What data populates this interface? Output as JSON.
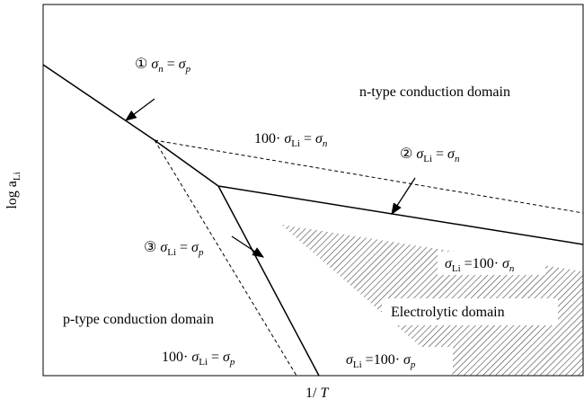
{
  "labels": {
    "eq1": {
      "runs": [
        {
          "t": "①"
        },
        {
          "t": "σ",
          "s": "n",
          "i": true
        },
        {
          "t": "="
        },
        {
          "t": "σ",
          "s": "p",
          "i": true
        }
      ]
    },
    "n_domain": {
      "runs": [
        {
          "t": "n-type conduction domain"
        }
      ]
    },
    "eq_n100": {
      "runs": [
        {
          "t": "100·"
        },
        {
          "t": "σ",
          "s": "Li",
          "i": true
        },
        {
          "t": "="
        },
        {
          "t": "σ",
          "s": "n",
          "i": true
        }
      ]
    },
    "eq2": {
      "runs": [
        {
          "t": "②"
        },
        {
          "t": "σ",
          "s": "Li",
          "i": true
        },
        {
          "t": "="
        },
        {
          "t": "σ",
          "s": "n",
          "i": true
        }
      ]
    },
    "eq_li_n": {
      "runs": [
        {
          "t": "σ",
          "s": "Li",
          "i": true
        },
        {
          "t": "=100·"
        },
        {
          "t": "σ",
          "s": "n",
          "i": true
        }
      ]
    },
    "electrolytic": {
      "runs": [
        {
          "t": "Electrolytic domain"
        }
      ]
    },
    "eq3": {
      "runs": [
        {
          "t": "③"
        },
        {
          "t": "σ",
          "s": "Li",
          "i": true
        },
        {
          "t": "="
        },
        {
          "t": "σ",
          "s": "p",
          "i": true
        }
      ]
    },
    "p_domain": {
      "runs": [
        {
          "t": "p-type conduction domain"
        }
      ]
    },
    "eq_p100": {
      "runs": [
        {
          "t": "100·"
        },
        {
          "t": "σ",
          "s": "Li",
          "i": true
        },
        {
          "t": "="
        },
        {
          "t": "σ",
          "s": "p",
          "i": true
        }
      ]
    },
    "eq_li_p": {
      "runs": [
        {
          "t": "σ",
          "s": "Li",
          "i": true
        },
        {
          "t": "=100·"
        },
        {
          "t": "σ",
          "s": "p",
          "i": true
        }
      ]
    },
    "y_axis": {
      "runs": [
        {
          "t": "log a",
          "s": "Li"
        }
      ]
    },
    "x_axis": {
      "runs": [
        {
          "t": "1/"
        },
        {
          "t": "T",
          "i": true
        }
      ]
    }
  }
}
